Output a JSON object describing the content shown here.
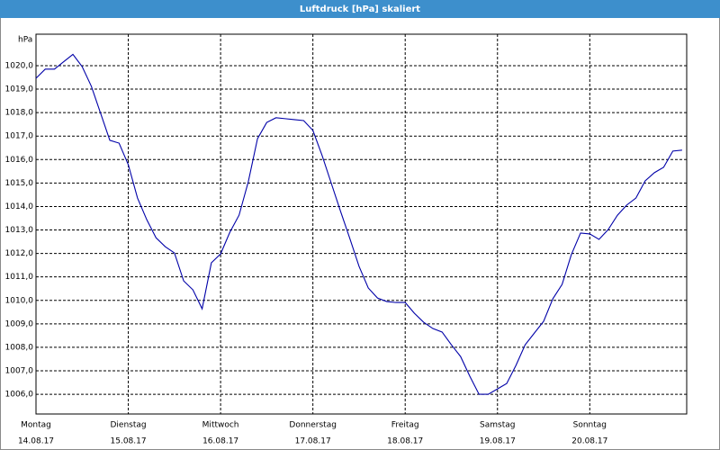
{
  "chart_data": {
    "type": "line",
    "title": "Luftdruck [hPa] skaliert",
    "y_label": "hPa",
    "x": [
      0,
      0.1,
      0.2,
      0.3,
      0.4,
      0.5,
      0.6,
      0.7,
      0.8,
      0.9,
      1.0,
      1.1,
      1.2,
      1.3,
      1.4,
      1.5,
      1.6,
      1.7,
      1.8,
      1.9,
      2.0,
      2.1,
      2.2,
      2.3,
      2.4,
      2.5,
      2.6,
      2.7,
      2.8,
      2.9,
      3.0,
      3.1,
      3.2,
      3.3,
      3.4,
      3.5,
      3.6,
      3.7,
      3.8,
      3.9,
      4.0,
      4.1,
      4.2,
      4.3,
      4.4,
      4.5,
      4.6,
      4.7,
      4.8,
      4.9,
      5.0,
      5.1,
      5.2,
      5.3,
      5.4,
      5.5,
      5.6,
      5.7,
      5.8,
      5.9,
      6.0,
      6.1,
      6.2,
      6.3,
      6.4,
      6.5,
      6.6,
      6.7,
      6.8,
      6.9,
      7.0
    ],
    "series": [
      {
        "name": "Luftdruck",
        "color": "#0000a8",
        "values": [
          1019.46,
          1019.85,
          1019.85,
          1020.17,
          1020.48,
          1019.96,
          1019.12,
          1017.97,
          1016.82,
          1016.7,
          1015.78,
          1014.36,
          1013.44,
          1012.67,
          1012.29,
          1012.02,
          1010.83,
          1010.45,
          1009.64,
          1011.6,
          1011.98,
          1012.9,
          1013.63,
          1015.05,
          1016.89,
          1017.58,
          1017.78,
          1017.74,
          1017.7,
          1017.66,
          1017.24,
          1016.17,
          1014.98,
          1013.79,
          1012.64,
          1011.45,
          1010.53,
          1010.1,
          1009.95,
          1009.91,
          1009.91,
          1009.45,
          1009.07,
          1008.8,
          1008.65,
          1008.11,
          1007.61,
          1006.77,
          1006.0,
          1006.0,
          1006.23,
          1006.46,
          1007.23,
          1008.11,
          1008.61,
          1009.11,
          1010.07,
          1010.68,
          1011.95,
          1012.87,
          1012.83,
          1012.6,
          1013.02,
          1013.63,
          1014.06,
          1014.36,
          1015.09,
          1015.44,
          1015.67,
          1016.36,
          1016.4
        ]
      }
    ],
    "xlim": [
      0,
      7.05
    ],
    "xticks": [
      {
        "value": 0,
        "label": "Montag"
      },
      {
        "value": 1,
        "label": "Dienstag"
      },
      {
        "value": 2,
        "label": "Mittwoch"
      },
      {
        "value": 3,
        "label": "Donnerstag"
      },
      {
        "value": 4,
        "label": "Freitag"
      },
      {
        "value": 5,
        "label": "Samstag"
      },
      {
        "value": 6,
        "label": "Sonntag"
      }
    ],
    "xtick_dates": [
      "14.08.17",
      "15.08.17",
      "16.08.17",
      "17.08.17",
      "18.08.17",
      "19.08.17",
      "20.08.17"
    ],
    "ylim": [
      1005.16,
      1021.34
    ],
    "yticks": [
      {
        "value": 1006,
        "label": "1006,0"
      },
      {
        "value": 1007,
        "label": "1007,0"
      },
      {
        "value": 1008,
        "label": "1008,0"
      },
      {
        "value": 1009,
        "label": "1009,0"
      },
      {
        "value": 1010,
        "label": "1010,0"
      },
      {
        "value": 1011,
        "label": "1011,0"
      },
      {
        "value": 1012,
        "label": "1012,0"
      },
      {
        "value": 1013,
        "label": "1013,0"
      },
      {
        "value": 1014,
        "label": "1014,0"
      },
      {
        "value": 1015,
        "label": "1015,0"
      },
      {
        "value": 1016,
        "label": "1016,0"
      },
      {
        "value": 1017,
        "label": "1017,0"
      },
      {
        "value": 1018,
        "label": "1018,0"
      },
      {
        "value": 1019,
        "label": "1019,0"
      },
      {
        "value": 1020,
        "label": "1020,0"
      }
    ],
    "grid": true
  }
}
